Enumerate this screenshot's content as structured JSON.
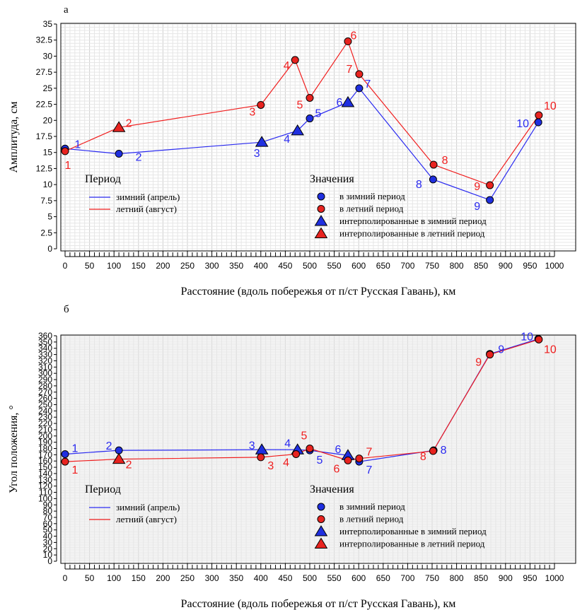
{
  "chart_data": [
    {
      "type": "line",
      "panel_label": "а",
      "xlabel": "Расстояние (вдоль побережья от п/ст Русская Гавань), км",
      "ylabel": "Амплитуда, см",
      "xlim": [
        0,
        1000
      ],
      "ylim": [
        0,
        35
      ],
      "xticks": [
        0,
        50,
        100,
        150,
        200,
        250,
        300,
        350,
        400,
        450,
        500,
        550,
        600,
        650,
        700,
        750,
        800,
        850,
        900,
        950,
        1000
      ],
      "yticks": [
        "0",
        "2.5",
        "5",
        "7.5",
        "10",
        "12.5",
        "15",
        "17.5",
        "20",
        "22.5",
        "25",
        "27.5",
        "30",
        "32.5",
        "35"
      ],
      "grid": true,
      "series": [
        {
          "name": "зимний (апрель)",
          "color": "#2a2af0",
          "points": [
            {
              "x": 0,
              "y": 15.6,
              "label": "1",
              "marker": "circle"
            },
            {
              "x": 110,
              "y": 14.8,
              "label": "2",
              "marker": "circle"
            },
            {
              "x": 402,
              "y": 16.6,
              "label": "3",
              "marker": "triangle"
            },
            {
              "x": 475,
              "y": 18.4,
              "label": "4",
              "marker": "triangle"
            },
            {
              "x": 500,
              "y": 20.3,
              "label": "5",
              "marker": "circle"
            },
            {
              "x": 578,
              "y": 22.8,
              "label": "6",
              "marker": "triangle"
            },
            {
              "x": 601,
              "y": 25.0,
              "label": "7",
              "marker": "circle"
            },
            {
              "x": 752,
              "y": 10.8,
              "label": "8",
              "marker": "circle"
            },
            {
              "x": 868,
              "y": 7.6,
              "label": "9",
              "marker": "circle"
            },
            {
              "x": 967,
              "y": 19.7,
              "label": "10",
              "marker": "circle"
            }
          ]
        },
        {
          "name": "летний (август)",
          "color": "#f01e1e",
          "points": [
            {
              "x": 0,
              "y": 15.2,
              "label": "1",
              "marker": "circle"
            },
            {
              "x": 110,
              "y": 18.9,
              "label": "2",
              "marker": "triangle"
            },
            {
              "x": 400,
              "y": 22.4,
              "label": "3",
              "marker": "circle"
            },
            {
              "x": 470,
              "y": 29.4,
              "label": "4",
              "marker": "circle"
            },
            {
              "x": 500,
              "y": 23.5,
              "label": "5",
              "marker": "circle"
            },
            {
              "x": 578,
              "y": 32.3,
              "label": "6",
              "marker": "circle"
            },
            {
              "x": 601,
              "y": 27.2,
              "label": "7",
              "marker": "circle"
            },
            {
              "x": 753,
              "y": 13.1,
              "label": "8",
              "marker": "circle"
            },
            {
              "x": 868,
              "y": 9.9,
              "label": "9",
              "marker": "circle"
            },
            {
              "x": 968,
              "y": 20.8,
              "label": "10",
              "marker": "circle"
            }
          ]
        }
      ],
      "legend_period": {
        "title": "Период",
        "items": [
          {
            "label": "зимний (апрель)",
            "color": "#2a2af0"
          },
          {
            "label": "летний (август)",
            "color": "#f01e1e"
          }
        ]
      },
      "legend_values": {
        "title": "Значения",
        "items": [
          {
            "label": "в зимний период",
            "marker": "circle",
            "color": "#1f2fe0"
          },
          {
            "label": "в летний период",
            "marker": "circle",
            "color": "#e8231f"
          },
          {
            "label": "интерполированные в зимний период",
            "marker": "triangle",
            "color": "#1f2fe0"
          },
          {
            "label": "интерполированные в летний период",
            "marker": "triangle",
            "color": "#e8231f"
          }
        ]
      }
    },
    {
      "type": "line",
      "panel_label": "б",
      "xlabel": "Расстояние (вдоль побережья от п/ст Русская Гавань), км",
      "ylabel": "Угол положения, °",
      "xlim": [
        0,
        1000
      ],
      "ylim": [
        0,
        360
      ],
      "xticks": [
        0,
        50,
        100,
        150,
        200,
        250,
        300,
        350,
        400,
        450,
        500,
        550,
        600,
        650,
        700,
        750,
        800,
        850,
        900,
        950,
        1000
      ],
      "yticks": [
        "0",
        "10",
        "20",
        "30",
        "40",
        "50",
        "60",
        "70",
        "80",
        "90",
        "100",
        "110",
        "120",
        "130",
        "140",
        "150",
        "160",
        "170",
        "180",
        "190",
        "200",
        "210",
        "220",
        "230",
        "240",
        "250",
        "260",
        "270",
        "280",
        "290",
        "300",
        "310",
        "320",
        "330",
        "340",
        "350",
        "360"
      ],
      "grid": true,
      "series": [
        {
          "name": "зимний (апрель)",
          "color": "#2a2af0",
          "points": [
            {
              "x": 0,
              "y": 171,
              "label": "1",
              "marker": "circle"
            },
            {
              "x": 110,
              "y": 177,
              "label": "2",
              "marker": "circle"
            },
            {
              "x": 402,
              "y": 178,
              "label": "3",
              "marker": "triangle"
            },
            {
              "x": 475,
              "y": 178,
              "label": "4",
              "marker": "triangle"
            },
            {
              "x": 500,
              "y": 177,
              "label": "5",
              "marker": "circle"
            },
            {
              "x": 578,
              "y": 169,
              "label": "6",
              "marker": "triangle"
            },
            {
              "x": 601,
              "y": 159,
              "label": "7",
              "marker": "circle"
            },
            {
              "x": 753,
              "y": 177,
              "label": "8",
              "marker": "circle"
            },
            {
              "x": 868,
              "y": 331,
              "label": "9",
              "marker": "circle"
            },
            {
              "x": 967,
              "y": 355,
              "label": "10",
              "marker": "circle"
            }
          ]
        },
        {
          "name": "летний (август)",
          "color": "#f01e1e",
          "points": [
            {
              "x": 0,
              "y": 159,
              "label": "1",
              "marker": "circle"
            },
            {
              "x": 110,
              "y": 163,
              "label": "2",
              "marker": "triangle"
            },
            {
              "x": 400,
              "y": 166,
              "label": "3",
              "marker": "circle"
            },
            {
              "x": 472,
              "y": 171,
              "label": "4",
              "marker": "circle"
            },
            {
              "x": 500,
              "y": 180,
              "label": "5",
              "marker": "circle"
            },
            {
              "x": 578,
              "y": 161,
              "label": "6",
              "marker": "circle"
            },
            {
              "x": 601,
              "y": 164,
              "label": "7",
              "marker": "circle"
            },
            {
              "x": 752,
              "y": 176,
              "label": "8",
              "marker": "circle"
            },
            {
              "x": 868,
              "y": 330,
              "label": "9",
              "marker": "circle"
            },
            {
              "x": 968,
              "y": 354,
              "label": "10",
              "marker": "circle"
            }
          ]
        }
      ],
      "legend_period": {
        "title": "Период",
        "items": [
          {
            "label": "зимний (апрель)",
            "color": "#2a2af0"
          },
          {
            "label": "летний (август)",
            "color": "#f01e1e"
          }
        ]
      },
      "legend_values": {
        "title": "Значения",
        "items": [
          {
            "label": "в зимний период",
            "marker": "circle",
            "color": "#1f2fe0"
          },
          {
            "label": "в летний период",
            "marker": "circle",
            "color": "#e8231f"
          },
          {
            "label": "интерполированные в зимний период",
            "marker": "triangle",
            "color": "#1f2fe0"
          },
          {
            "label": "интерполированные в летний период",
            "marker": "triangle",
            "color": "#e8231f"
          }
        ]
      }
    }
  ]
}
